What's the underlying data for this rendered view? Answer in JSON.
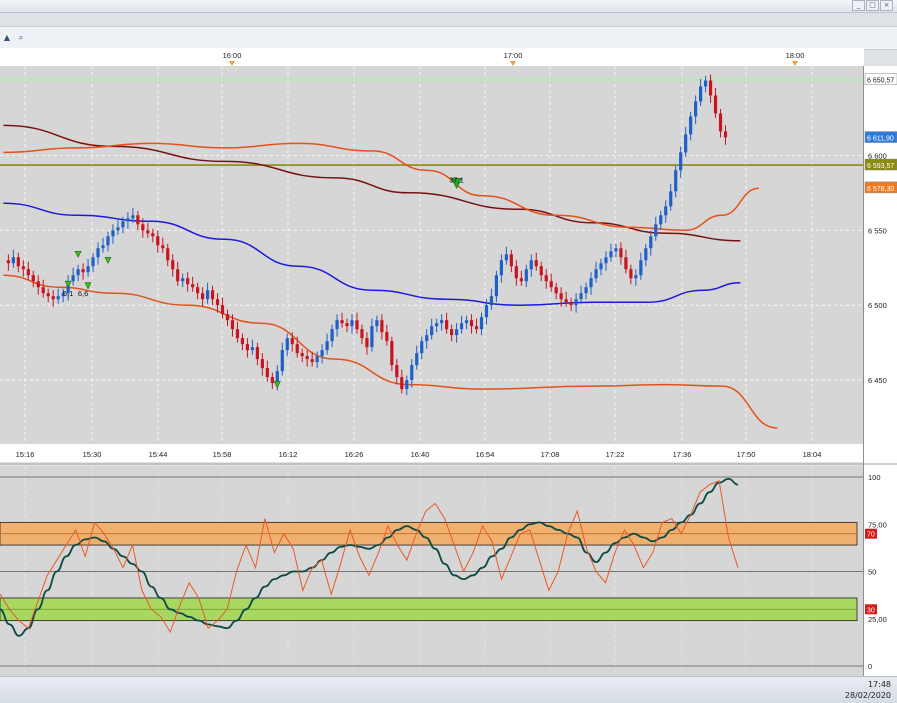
{
  "window": {
    "min_label": "_",
    "max_label": "□",
    "close_label": "×"
  },
  "toolbar": {
    "icons": [
      "chart-tool-icon",
      "zoom-icon"
    ]
  },
  "status": {
    "time": "17:48",
    "date": "28/02/2020"
  },
  "colors": {
    "bull": "#1f5fc8",
    "bear": "#c8141e",
    "blue_ma": "#1a1ae0",
    "orange": "#e2521a",
    "darkred": "#7a1010",
    "olive": "#8a8a10",
    "osc_main": "#0e4a46",
    "osc_fast": "#e85a28",
    "overbought_band": "#f0b070",
    "oversold_band": "#a8d860"
  },
  "chart_data": [
    {
      "type": "candlestick",
      "top_time_labels": [
        "16:00",
        "17:00",
        "18:00"
      ],
      "x_tick_labels": [
        "15:16",
        "15:30",
        "15:44",
        "15:58",
        "16:12",
        "16:26",
        "16:40",
        "16:54",
        "17:08",
        "17:22",
        "17:36",
        "17:50",
        "18:04"
      ],
      "y_tick_labels": [
        "6 600",
        "6 550",
        "6 500",
        "6 450"
      ],
      "ylim": [
        6410,
        6655
      ],
      "price_tags": [
        {
          "label": "6 650,57",
          "value": 6650.57,
          "bg": "#ffffff",
          "fg": "#222222"
        },
        {
          "label": "6 611,90",
          "value": 6611.9,
          "bg": "#2f7bdc",
          "fg": "#ffffff"
        },
        {
          "label": "6 593,57",
          "value": 6593.57,
          "bg": "#8a8a10",
          "fg": "#ffffff"
        },
        {
          "label": "6 578,30",
          "value": 6578.3,
          "bg": "#f07a20",
          "fg": "#ffffff"
        }
      ],
      "annotations": [
        {
          "text": "37,1",
          "t": 91,
          "price": 6582
        },
        {
          "text": "5,1",
          "t": 13,
          "price": 6506
        },
        {
          "text": "6,6",
          "t": 16,
          "price": 6506
        }
      ],
      "signals": [
        {
          "t": 15,
          "price": 6532,
          "type": "up-arrow"
        },
        {
          "t": 13,
          "price": 6512,
          "type": "up-arrow"
        },
        {
          "t": 21,
          "price": 6528,
          "type": "up-arrow"
        },
        {
          "t": 17,
          "price": 6511,
          "type": "up-arrow"
        },
        {
          "t": 55,
          "price": 6445,
          "type": "up-arrow"
        },
        {
          "t": 91,
          "price": 6578,
          "type": "up-arrow-large"
        }
      ],
      "close_path": [
        [
          0,
          6530
        ],
        [
          1,
          6528
        ],
        [
          2,
          6532
        ],
        [
          3,
          6526
        ],
        [
          4,
          6524
        ],
        [
          5,
          6520
        ],
        [
          6,
          6516
        ],
        [
          7,
          6512
        ],
        [
          8,
          6508
        ],
        [
          9,
          6506
        ],
        [
          10,
          6504
        ],
        [
          11,
          6506
        ],
        [
          12,
          6508
        ],
        [
          13,
          6516
        ],
        [
          14,
          6520
        ],
        [
          15,
          6524
        ],
        [
          16,
          6522
        ],
        [
          17,
          6526
        ],
        [
          18,
          6532
        ],
        [
          19,
          6538
        ],
        [
          20,
          6540
        ],
        [
          21,
          6546
        ],
        [
          22,
          6550
        ],
        [
          23,
          6552
        ],
        [
          24,
          6556
        ],
        [
          25,
          6558
        ],
        [
          26,
          6560
        ],
        [
          27,
          6554
        ],
        [
          28,
          6550
        ],
        [
          29,
          6548
        ],
        [
          30,
          6546
        ],
        [
          31,
          6540
        ],
        [
          32,
          6538
        ],
        [
          33,
          6530
        ],
        [
          34,
          6524
        ],
        [
          35,
          6516
        ],
        [
          36,
          6518
        ],
        [
          37,
          6514
        ],
        [
          38,
          6512
        ],
        [
          39,
          6508
        ],
        [
          40,
          6504
        ],
        [
          41,
          6510
        ],
        [
          42,
          6504
        ],
        [
          43,
          6500
        ],
        [
          44,
          6494
        ],
        [
          45,
          6490
        ],
        [
          46,
          6484
        ],
        [
          47,
          6478
        ],
        [
          48,
          6474
        ],
        [
          49,
          6470
        ],
        [
          50,
          6472
        ],
        [
          51,
          6464
        ],
        [
          52,
          6458
        ],
        [
          53,
          6452
        ],
        [
          54,
          6448
        ],
        [
          55,
          6456
        ],
        [
          56,
          6470
        ],
        [
          57,
          6478
        ],
        [
          58,
          6474
        ],
        [
          59,
          6468
        ],
        [
          60,
          6466
        ],
        [
          61,
          6464
        ],
        [
          62,
          6462
        ],
        [
          63,
          6466
        ],
        [
          64,
          6470
        ],
        [
          65,
          6476
        ],
        [
          66,
          6484
        ],
        [
          67,
          6490
        ],
        [
          68,
          6488
        ],
        [
          69,
          6486
        ],
        [
          70,
          6490
        ],
        [
          71,
          6484
        ],
        [
          72,
          6478
        ],
        [
          73,
          6472
        ],
        [
          74,
          6486
        ],
        [
          75,
          6490
        ],
        [
          76,
          6482
        ],
        [
          77,
          6476
        ],
        [
          78,
          6460
        ],
        [
          79,
          6452
        ],
        [
          80,
          6444
        ],
        [
          81,
          6450
        ],
        [
          82,
          6460
        ],
        [
          83,
          6468
        ],
        [
          84,
          6476
        ],
        [
          85,
          6480
        ],
        [
          86,
          6486
        ],
        [
          87,
          6488
        ],
        [
          88,
          6490
        ],
        [
          89,
          6484
        ],
        [
          90,
          6480
        ],
        [
          91,
          6484
        ],
        [
          92,
          6488
        ],
        [
          93,
          6490
        ],
        [
          94,
          6486
        ],
        [
          95,
          6484
        ],
        [
          96,
          6492
        ],
        [
          97,
          6500
        ],
        [
          98,
          6506
        ],
        [
          99,
          6520
        ],
        [
          100,
          6530
        ],
        [
          101,
          6534
        ],
        [
          102,
          6526
        ],
        [
          103,
          6518
        ],
        [
          104,
          6516
        ],
        [
          105,
          6524
        ],
        [
          106,
          6530
        ],
        [
          107,
          6526
        ],
        [
          108,
          6520
        ],
        [
          109,
          6516
        ],
        [
          110,
          6512
        ],
        [
          111,
          6508
        ],
        [
          112,
          6504
        ],
        [
          113,
          6502
        ],
        [
          114,
          6500
        ],
        [
          115,
          6504
        ],
        [
          116,
          6508
        ],
        [
          117,
          6512
        ],
        [
          118,
          6518
        ],
        [
          119,
          6524
        ],
        [
          120,
          6528
        ],
        [
          121,
          6532
        ],
        [
          122,
          6536
        ],
        [
          123,
          6538
        ],
        [
          124,
          6532
        ],
        [
          125,
          6524
        ],
        [
          126,
          6518
        ],
        [
          127,
          6520
        ],
        [
          128,
          6530
        ],
        [
          129,
          6538
        ],
        [
          130,
          6546
        ],
        [
          131,
          6554
        ],
        [
          132,
          6560
        ],
        [
          133,
          6566
        ],
        [
          134,
          6576
        ],
        [
          135,
          6590
        ],
        [
          136,
          6602
        ],
        [
          137,
          6614
        ],
        [
          138,
          6626
        ],
        [
          139,
          6636
        ],
        [
          140,
          6646
        ],
        [
          141,
          6650
        ],
        [
          142,
          6640
        ],
        [
          143,
          6628
        ],
        [
          144,
          6616
        ],
        [
          145,
          6612
        ]
      ],
      "overlays": [
        {
          "name": "blue_ma",
          "color": "#1a1ae0",
          "points": [
            [
              0,
              6568
            ],
            [
              20,
              6560
            ],
            [
              40,
              6556
            ],
            [
              60,
              6544
            ],
            [
              80,
              6526
            ],
            [
              100,
              6510
            ],
            [
              120,
              6504
            ],
            [
              140,
              6500
            ],
            [
              160,
              6502
            ],
            [
              175,
              6502
            ],
            [
              190,
              6510
            ],
            [
              200,
              6515
            ]
          ]
        },
        {
          "name": "darkred_ma",
          "color": "#7a1010",
          "points": [
            [
              0,
              6620
            ],
            [
              30,
              6606
            ],
            [
              60,
              6596
            ],
            [
              90,
              6585
            ],
            [
              110,
              6575
            ],
            [
              140,
              6564
            ],
            [
              160,
              6555
            ],
            [
              180,
              6548
            ],
            [
              200,
              6543
            ]
          ]
        },
        {
          "name": "orange_upper",
          "color": "#e2521a",
          "points": [
            [
              0,
              6602
            ],
            [
              20,
              6605
            ],
            [
              40,
              6608
            ],
            [
              60,
              6605
            ],
            [
              80,
              6608
            ],
            [
              100,
              6603
            ],
            [
              115,
              6590
            ],
            [
              130,
              6573
            ],
            [
              150,
              6560
            ],
            [
              170,
              6552
            ],
            [
              185,
              6550
            ],
            [
              195,
              6560
            ],
            [
              205,
              6578
            ]
          ]
        },
        {
          "name": "orange_lower",
          "color": "#e2521a",
          "points": [
            [
              0,
              6520
            ],
            [
              15,
              6512
            ],
            [
              30,
              6508
            ],
            [
              50,
              6500
            ],
            [
              70,
              6488
            ],
            [
              90,
              6464
            ],
            [
              110,
              6447
            ],
            [
              130,
              6444
            ],
            [
              160,
              6446
            ],
            [
              180,
              6447
            ],
            [
              195,
              6446
            ],
            [
              210,
              6418
            ]
          ]
        }
      ]
    },
    {
      "type": "line",
      "y_tick_labels": [
        "100",
        "75,00",
        "50",
        "25,00",
        "0"
      ],
      "levels": [
        {
          "label": "70",
          "value": 70
        },
        {
          "label": "30",
          "value": 30
        }
      ],
      "ylim": [
        0,
        100
      ],
      "series": [
        {
          "values": [
            30,
            22,
            16,
            20,
            30,
            40,
            50,
            58,
            64,
            67,
            68,
            66,
            62,
            58,
            54,
            50,
            42,
            36,
            30,
            28,
            26,
            24,
            22,
            21,
            20,
            24,
            30,
            36,
            42,
            46,
            48,
            50,
            50,
            52,
            56,
            60,
            63,
            64,
            63,
            62,
            64,
            68,
            72,
            74,
            72,
            68,
            62,
            54,
            48,
            46,
            48,
            52,
            58,
            62,
            68,
            72,
            75,
            76,
            74,
            72,
            70,
            68,
            60,
            55,
            60,
            65,
            68,
            70,
            68,
            66,
            68,
            72,
            76,
            80,
            86,
            92,
            97,
            99,
            96
          ]
        },
        {
          "values": [
            38,
            30,
            24,
            20,
            34,
            48,
            56,
            64,
            72,
            58,
            76,
            70,
            62,
            52,
            64,
            40,
            30,
            26,
            18,
            32,
            44,
            36,
            20,
            24,
            30,
            50,
            64,
            52,
            78,
            60,
            70,
            62,
            40,
            52,
            56,
            38,
            54,
            72,
            58,
            48,
            60,
            74,
            64,
            56,
            70,
            82,
            86,
            78,
            64,
            50,
            60,
            74,
            66,
            46,
            58,
            70,
            72,
            56,
            40,
            50,
            70,
            82,
            62,
            50,
            44,
            60,
            72,
            64,
            52,
            60,
            76,
            78,
            70,
            80,
            92,
            96,
            98,
            68,
            52
          ]
        }
      ]
    }
  ]
}
